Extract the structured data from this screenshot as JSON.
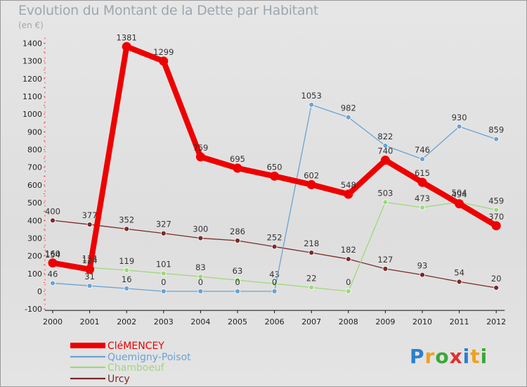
{
  "chart_data": {
    "type": "line",
    "title": "Evolution du Montant de la Dette par Habitant",
    "subtitle": "(en €)",
    "x": [
      "2000",
      "2001",
      "2002",
      "2003",
      "2004",
      "2005",
      "2006",
      "2007",
      "2008",
      "2009",
      "2010",
      "2011",
      "2012"
    ],
    "ylim": [
      -100,
      1400
    ],
    "yticks": [
      -100,
      0,
      100,
      200,
      300,
      400,
      500,
      600,
      700,
      800,
      900,
      1000,
      1100,
      1200,
      1300,
      1400
    ],
    "grid": false,
    "legend_position": "bottom-left",
    "series": [
      {
        "name": "CléMENCEY",
        "color": "#ee0000",
        "values": [
          160,
          124,
          1381,
          1299,
          759,
          695,
          650,
          602,
          548,
          740,
          615,
          494,
          370
        ],
        "labels": [
          "160",
          "124",
          "1381",
          "1299",
          "759",
          "695",
          "650",
          "602",
          "548",
          "740",
          "615",
          "494",
          "370"
        ]
      },
      {
        "name": "Quemigny-Poisot",
        "color": "#6aa3d2",
        "values": [
          46,
          31,
          16,
          0,
          0,
          0,
          0,
          1053,
          982,
          822,
          746,
          930,
          859
        ],
        "labels": [
          "46",
          "31",
          "16",
          "0",
          "0",
          "0",
          "0",
          "1053",
          "982",
          "822",
          "746",
          "930",
          "859"
        ]
      },
      {
        "name": "Chamboeuf",
        "color": "#9ed87a",
        "values": [
          154,
          134,
          119,
          101,
          83,
          63,
          43,
          22,
          0,
          503,
          473,
          504,
          459
        ],
        "labels": [
          "154",
          "134",
          "119",
          "101",
          "83",
          "63",
          "43",
          "22",
          "0",
          "503",
          "473",
          "504",
          "459"
        ]
      },
      {
        "name": "Urcy",
        "color": "#7a2a2a",
        "values": [
          400,
          377,
          352,
          327,
          300,
          286,
          252,
          218,
          182,
          127,
          93,
          54,
          20
        ],
        "labels": [
          "400",
          "377",
          "352",
          "327",
          "300",
          "286",
          "252",
          "218",
          "182",
          "127",
          "93",
          "54",
          "20"
        ]
      }
    ]
  },
  "brand": {
    "letters": [
      "P",
      "r",
      "o",
      "x",
      "i",
      "t",
      "i"
    ],
    "colors": [
      "#2a7fd0",
      "#f0a020",
      "#3aa836",
      "#e03030",
      "#2a7fd0",
      "#f0a020",
      "#3aa836"
    ]
  }
}
